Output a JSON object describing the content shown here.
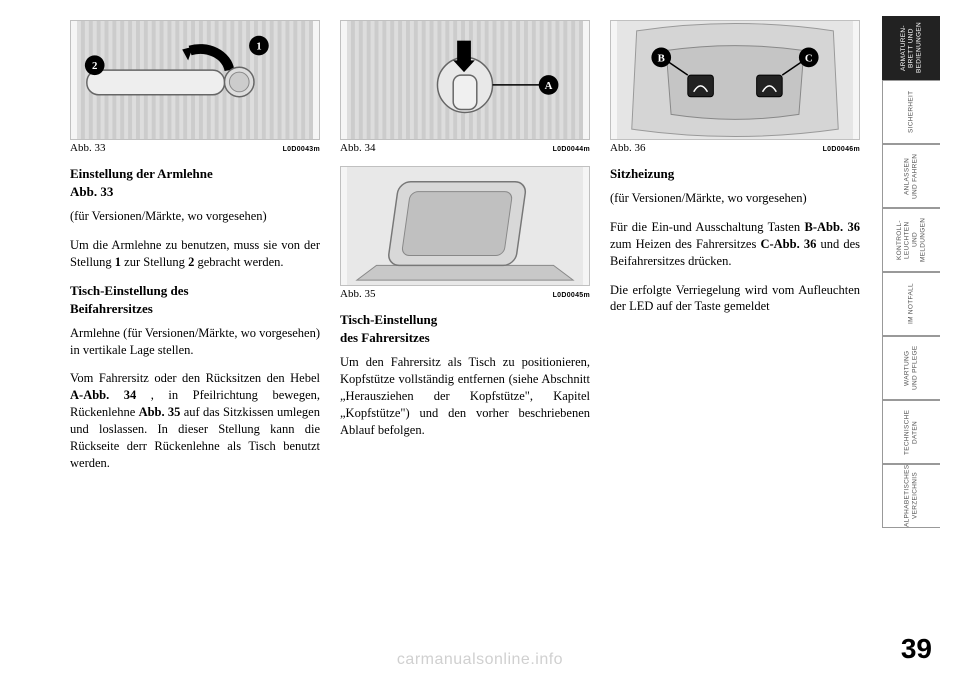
{
  "page_number": "39",
  "watermark": "carmanualsonline.info",
  "tabs": [
    {
      "label": "ARMATUREN-\nBRETT UND\nBEDIENUNGEN",
      "active": true
    },
    {
      "label": "SICHERHEIT",
      "active": false
    },
    {
      "label": "ANLASSEN\nUND FAHREN",
      "active": false
    },
    {
      "label": "KONTROLL-\nLEUCHTEN UND\nMELDUNGEN",
      "active": false
    },
    {
      "label": "IM NOTFALL",
      "active": false
    },
    {
      "label": "WARTUNG\nUND PFLEGE",
      "active": false
    },
    {
      "label": "TECHNISCHE\nDATEN",
      "active": false
    },
    {
      "label": "ALPHABETISCHES\nVERZEICHNIS",
      "active": false
    }
  ],
  "figures": {
    "fig33": {
      "label": "Abb. 33",
      "code": "L0D0043m",
      "markers": [
        "1",
        "2"
      ]
    },
    "fig34": {
      "label": "Abb. 34",
      "code": "L0D0044m",
      "markers": [
        "A"
      ]
    },
    "fig35": {
      "label": "Abb. 35",
      "code": "L0D0045m"
    },
    "fig36": {
      "label": "Abb. 36",
      "code": "L0D0046m",
      "markers": [
        "B",
        "C"
      ]
    }
  },
  "col1": {
    "h1": "Einstellung der Armlehne",
    "h1b": "Abb. 33",
    "p1": "(für Versionen/Märkte, wo vorgesehen)",
    "p2a": "Um die Armlehne zu benutzen, muss sie von der Stellung ",
    "p2b1": "1",
    "p2c": " zur Stellung ",
    "p2b2": "2",
    "p2d": " gebracht werden.",
    "h2a": "Tisch-Einstellung des",
    "h2b": "Beifahrersitzes",
    "p3": "Armlehne (für Versionen/Märkte, wo vorgesehen) in vertikale Lage stellen.",
    "p4a": "Vom Fahrersitz oder den Rücksitzen den Hebel ",
    "p4b1": "A-Abb. 34",
    "p4c": " , in Pfeilrichtung bewegen, Rückenlehne ",
    "p4b2": "Abb. 35",
    "p4d": " auf das Sitzkissen umlegen und loslassen. In dieser Stellung kann die Rückseite derr Rückenlehne als Tisch benutzt werden."
  },
  "col2": {
    "h1a": "Tisch-Einstellung",
    "h1b": "des Fahrersitzes",
    "p1": "Um den Fahrersitz als Tisch zu posi­tionieren, Kopfstütze vollständig ent­fernen (siehe Abschnitt „Herausziehen der Kopfstütze\", Kapitel „Kopfstütze\") und den vorher beschriebenen Ablauf befolgen."
  },
  "col3": {
    "h1": "Sitzheizung",
    "p1": "(für Versionen/Märkte, wo vorgesehen)",
    "p2a": "Für die Ein-und Ausschaltung Tasten ",
    "p2b1": "B-Abb. 36",
    "p2c": " zum Heizen des Fahrer­sitzes ",
    "p2b2": "C-Abb. 36",
    "p2d": " und des Beifahrer­sitzes drücken.",
    "p3": "Die erfolgte Verriegelung wird vom Aufleuchten der LED auf der Taste ge­meldet"
  }
}
